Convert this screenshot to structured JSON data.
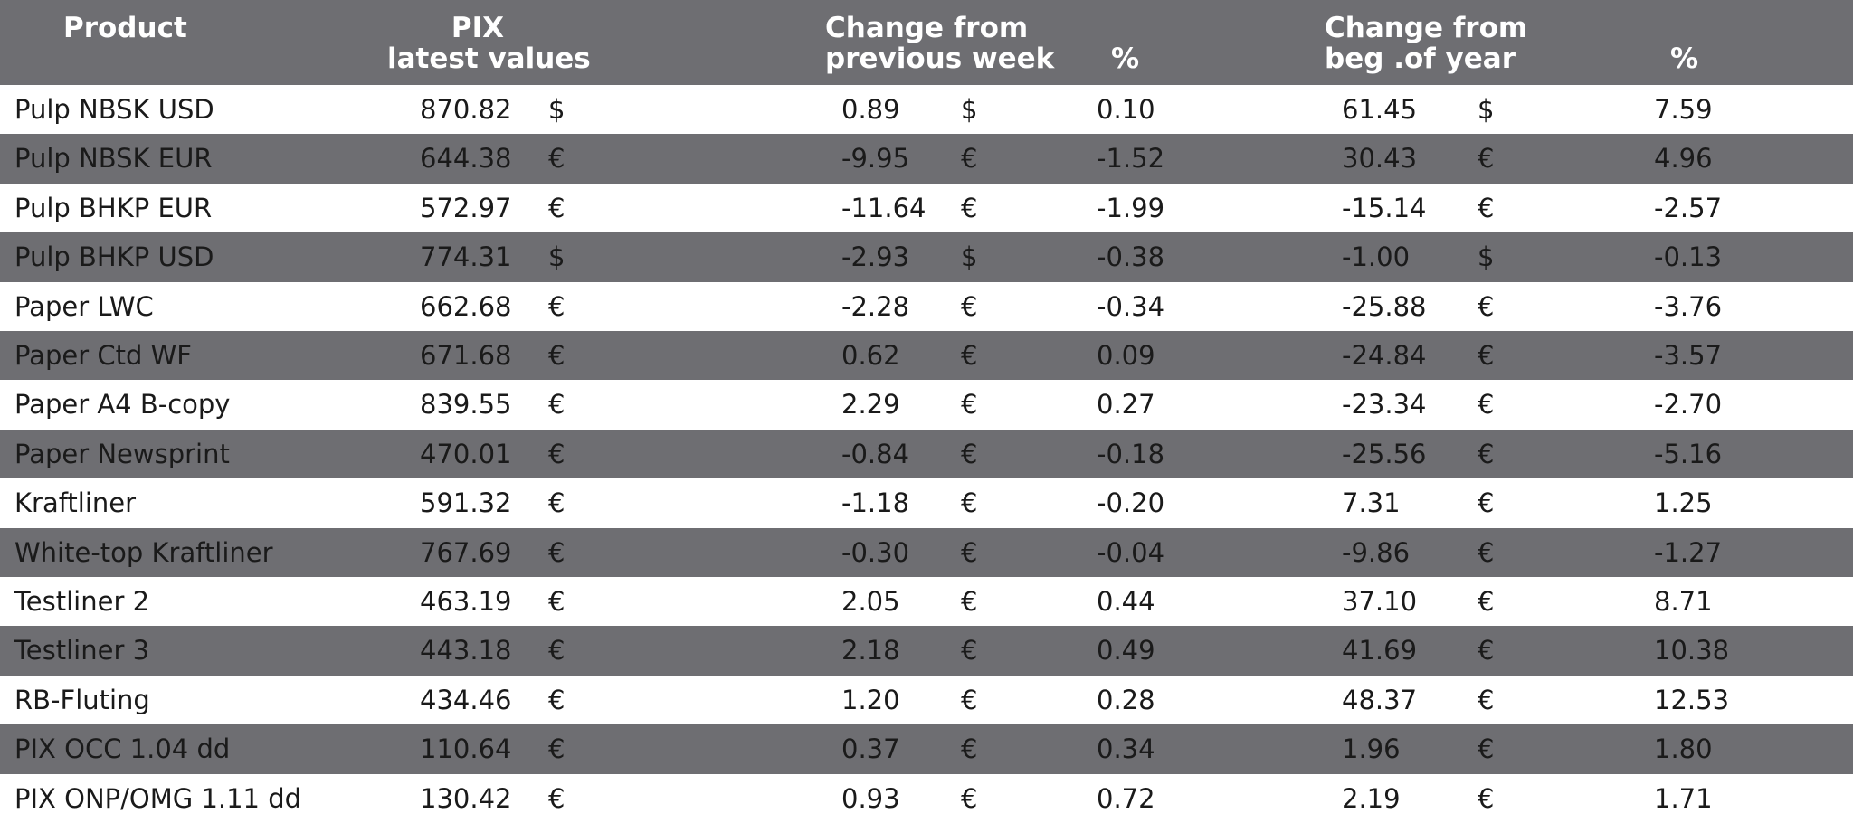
{
  "header": {
    "product": "Product",
    "pix_line1": "PIX",
    "pix_line2": "latest values",
    "week_line1": "Change from",
    "week_line2": "previous week",
    "week_pct": "%",
    "year_line1": "Change from",
    "year_line2": "beg .of year",
    "year_pct": "%"
  },
  "colors": {
    "header_bg": "#6e6e72",
    "stripe_bg": "#6e6e72",
    "header_text": "#ffffff"
  },
  "rows": [
    {
      "product": "Pulp NBSK USD",
      "pix": "870.82",
      "cur1": "$",
      "chw": "0.89",
      "cur2": "$",
      "pctw": "0.10",
      "chy": "61.45",
      "cur3": "$",
      "pcty": "7.59"
    },
    {
      "product": "Pulp NBSK EUR",
      "pix": "644.38",
      "cur1": "€",
      "chw": "-9.95",
      "cur2": "€",
      "pctw": "-1.52",
      "chy": "30.43",
      "cur3": "€",
      "pcty": "4.96"
    },
    {
      "product": "Pulp BHKP EUR",
      "pix": "572.97",
      "cur1": "€",
      "chw": "-11.64",
      "cur2": "€",
      "pctw": "-1.99",
      "chy": "-15.14",
      "cur3": "€",
      "pcty": "-2.57"
    },
    {
      "product": "Pulp BHKP USD",
      "pix": "774.31",
      "cur1": "$",
      "chw": "-2.93",
      "cur2": "$",
      "pctw": "-0.38",
      "chy": "-1.00",
      "cur3": "$",
      "pcty": "-0.13"
    },
    {
      "product": "Paper LWC",
      "pix": "662.68",
      "cur1": "€",
      "chw": "-2.28",
      "cur2": "€",
      "pctw": "-0.34",
      "chy": "-25.88",
      "cur3": "€",
      "pcty": "-3.76"
    },
    {
      "product": "Paper Ctd WF",
      "pix": "671.68",
      "cur1": "€",
      "chw": "0.62",
      "cur2": "€",
      "pctw": "0.09",
      "chy": "-24.84",
      "cur3": "€",
      "pcty": "-3.57"
    },
    {
      "product": "Paper A4 B-copy",
      "pix": "839.55",
      "cur1": "€",
      "chw": "2.29",
      "cur2": "€",
      "pctw": "0.27",
      "chy": "-23.34",
      "cur3": "€",
      "pcty": "-2.70"
    },
    {
      "product": "Paper Newsprint",
      "pix": "470.01",
      "cur1": "€",
      "chw": "-0.84",
      "cur2": "€",
      "pctw": "-0.18",
      "chy": "-25.56",
      "cur3": "€",
      "pcty": "-5.16"
    },
    {
      "product": "Kraftliner",
      "pix": "591.32",
      "cur1": "€",
      "chw": "-1.18",
      "cur2": "€",
      "pctw": "-0.20",
      "chy": "7.31",
      "cur3": "€",
      "pcty": "1.25"
    },
    {
      "product": "White-top Kraftliner",
      "pix": "767.69",
      "cur1": "€",
      "chw": "-0.30",
      "cur2": "€",
      "pctw": "-0.04",
      "chy": "-9.86",
      "cur3": "€",
      "pcty": "-1.27"
    },
    {
      "product": "Testliner 2",
      "pix": "463.19",
      "cur1": "€",
      "chw": "2.05",
      "cur2": "€",
      "pctw": "0.44",
      "chy": "37.10",
      "cur3": "€",
      "pcty": "8.71"
    },
    {
      "product": "Testliner 3",
      "pix": "443.18",
      "cur1": "€",
      "chw": "2.18",
      "cur2": "€",
      "pctw": "0.49",
      "chy": "41.69",
      "cur3": "€",
      "pcty": "10.38"
    },
    {
      "product": "RB-Fluting",
      "pix": "434.46",
      "cur1": "€",
      "chw": "1.20",
      "cur2": "€",
      "pctw": "0.28",
      "chy": "48.37",
      "cur3": "€",
      "pcty": "12.53"
    },
    {
      "product": "PIX OCC 1.04 dd",
      "pix": "110.64",
      "cur1": "€",
      "chw": "0.37",
      "cur2": "€",
      "pctw": "0.34",
      "chy": "1.96",
      "cur3": "€",
      "pcty": "1.80"
    },
    {
      "product": "PIX ONP/OMG 1.11 dd",
      "pix": "130.42",
      "cur1": "€",
      "chw": "0.93",
      "cur2": "€",
      "pctw": "0.72",
      "chy": "2.19",
      "cur3": "€",
      "pcty": "1.71"
    }
  ]
}
